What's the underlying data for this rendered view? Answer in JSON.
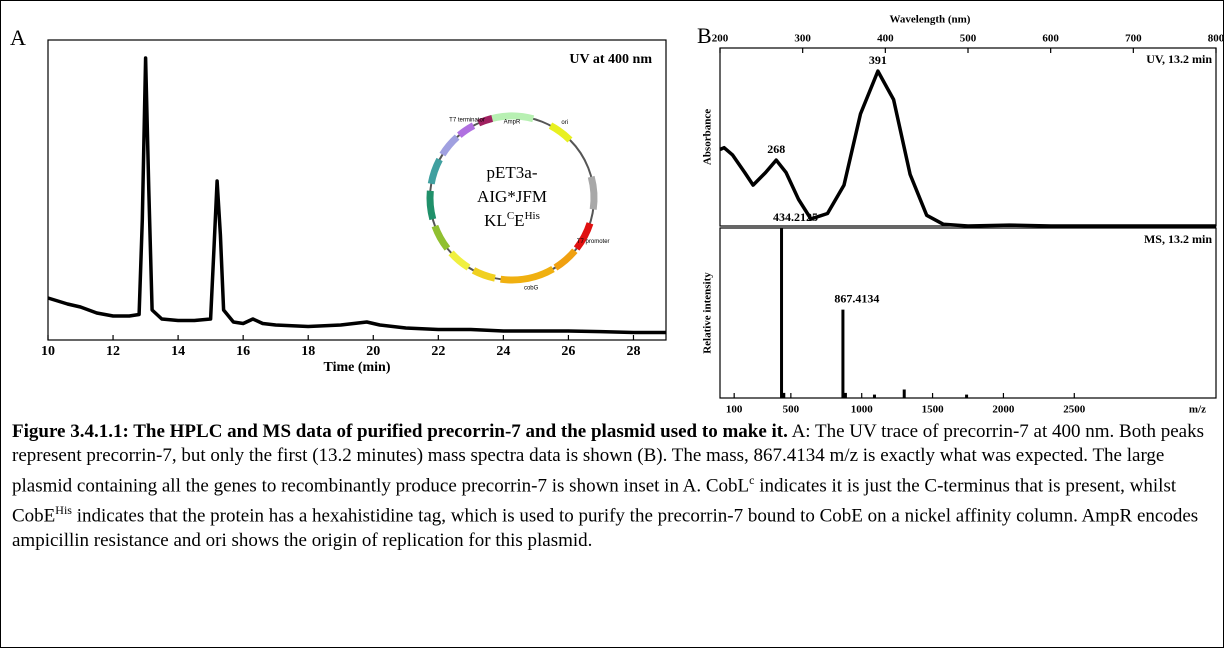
{
  "chart_data": [
    {
      "type": "line",
      "panel_label": "A",
      "annotation": "UV at 400 nm",
      "xlabel": "Time (min)",
      "x": [
        10,
        10.3,
        10.6,
        11,
        11.5,
        12,
        12.5,
        12.8,
        12.9,
        13.0,
        13.1,
        13.2,
        13.5,
        14,
        14.5,
        15,
        15.1,
        15.2,
        15.3,
        15.4,
        15.7,
        16,
        16.3,
        16.6,
        17,
        18,
        19,
        19.8,
        20.2,
        21,
        22,
        23,
        24,
        25,
        26,
        27,
        28,
        29
      ],
      "values": [
        14,
        13,
        12,
        11,
        9,
        8,
        8,
        8.5,
        40,
        94,
        50,
        10,
        7,
        6.5,
        6.5,
        7,
        30,
        53,
        35,
        10,
        6,
        5.5,
        7,
        5.5,
        5,
        4.5,
        5,
        6,
        5,
        4,
        3.5,
        3.5,
        3,
        3,
        3,
        2.8,
        2.5,
        2.5
      ],
      "color": "#000000",
      "xlim": [
        10,
        29
      ],
      "xticks": [
        10,
        12,
        14,
        16,
        18,
        20,
        22,
        24,
        26,
        28
      ],
      "ylim": [
        0,
        100
      ]
    },
    {
      "type": "line",
      "panel_label": "B",
      "xlabel": "Wavelength (nm)",
      "ylabel": "Absorbance",
      "annotation": "UV, 13.2 min",
      "x": [
        200,
        205,
        215,
        230,
        240,
        255,
        268,
        280,
        295,
        310,
        330,
        350,
        370,
        391,
        410,
        430,
        450,
        470,
        500,
        550,
        600,
        700,
        800
      ],
      "values": [
        43,
        44,
        40,
        30,
        23,
        30,
        37,
        30,
        15,
        4,
        7,
        23,
        63,
        87,
        71,
        29,
        6,
        1,
        0,
        0.5,
        0,
        0,
        0
      ],
      "peaks": [
        {
          "x": 268,
          "y": 37
        },
        {
          "x": 391,
          "y": 87
        }
      ],
      "color": "#000000",
      "xlim": [
        200,
        800
      ],
      "xticks": [
        200,
        300,
        400,
        500,
        600,
        700,
        800
      ],
      "ylim": [
        0,
        100
      ]
    },
    {
      "type": "stick",
      "xlabel": "m/z",
      "ylabel": "Relative intensity",
      "annotation": "MS, 13.2 min",
      "x": [
        434.2125,
        450,
        867.4134,
        885,
        1090,
        1300,
        1740
      ],
      "values": [
        100,
        3,
        52,
        3,
        2,
        5,
        2
      ],
      "peaks": [
        {
          "x": 434.2125,
          "y": 100
        },
        {
          "x": 867.4134,
          "y": 52
        }
      ],
      "color": "#000000",
      "xlim": [
        0,
        3500
      ],
      "xticks": [
        100,
        500,
        1000,
        1500,
        2000,
        2500
      ],
      "ylim": [
        0,
        100
      ]
    }
  ],
  "plasmid": {
    "name": [
      "pET3a-",
      "AIG*JFM"
    ],
    "name_parts": [
      "KL",
      "C",
      "E",
      "His"
    ],
    "features": [
      "AmpR",
      "ori",
      "T7 terminator",
      "T7 promoter",
      "cobG"
    ]
  },
  "caption": [
    {
      "bold": "Figure 3.4.1.1: The HPLC and MS data of purified precorrin-7 and the plasmid used to make it."
    },
    {
      "text": " A: The UV trace of precorrin-7 at 400 nm. Both peaks represent precorrin-7, but only the first (13.2 minutes) mass spectra data is shown (B). The mass, 867.4134 m/z is exactly what was expected. The large plasmid containing all the genes to recombinantly produce precorrin-7 is shown inset in A. CobL"
    },
    {
      "sup": "c"
    },
    {
      "text": " indicates it is just the C-terminus that is present, whilst CobE"
    },
    {
      "sup": "His"
    },
    {
      "text": " indicates that the protein has a hexahistidine tag, which is used to purify the precorrin-7 bound to CobE on a nickel affinity column. AmpR encodes ampicillin resistance and ori shows the origin of replication for this plasmid."
    }
  ]
}
